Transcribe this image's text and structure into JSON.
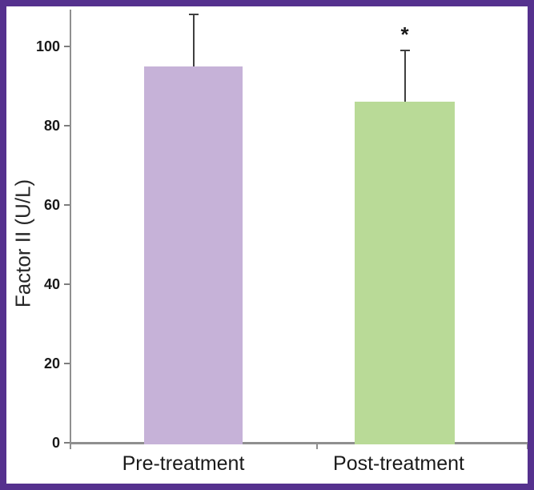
{
  "frame": {
    "border_color": "#55318e",
    "background_color": "#ffffff"
  },
  "chart_data": {
    "type": "bar",
    "categories": [
      "Pre-treatment",
      "Post-treatment"
    ],
    "values": [
      95,
      86
    ],
    "error_plus": [
      13,
      13
    ],
    "bar_colors": [
      "#c6b2d8",
      "#b9da97"
    ],
    "title": "",
    "xlabel": "",
    "ylabel": "Factor II (U/L)",
    "ylim": [
      0,
      110
    ],
    "yticks": [
      0,
      20,
      40,
      60,
      80,
      100
    ],
    "grid": false,
    "legend": false,
    "annotations": [
      {
        "category_index": 1,
        "text": "*"
      }
    ],
    "axis_color": "#8f8f8f",
    "error_bar_color": "#404040",
    "tick_label_color": "#1a1a1a"
  }
}
